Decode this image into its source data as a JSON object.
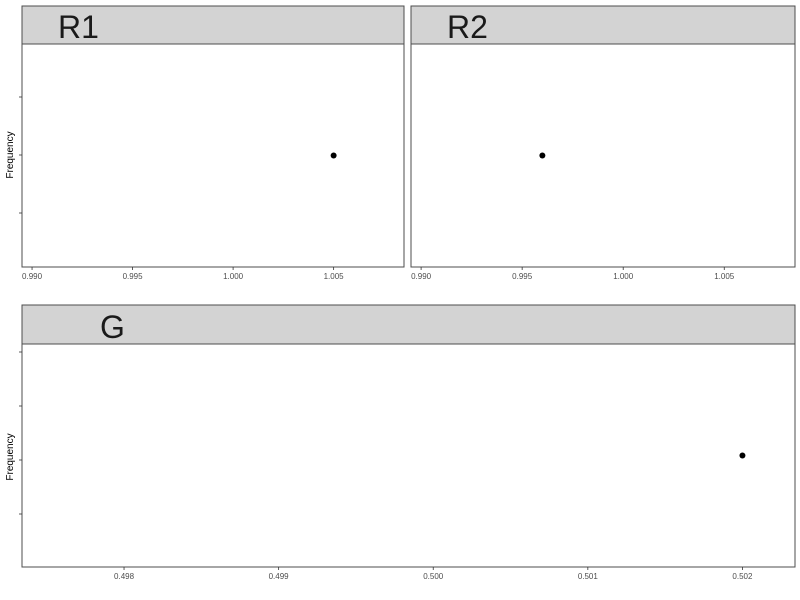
{
  "chart_data": [
    {
      "type": "scatter",
      "facet": "R1",
      "ylabel": "Frequency",
      "xlim": [
        0.9895,
        1.0085
      ],
      "xticks": [
        0.99,
        0.995,
        1.0,
        1.005
      ],
      "xtick_labels": [
        "0.990",
        "0.995",
        "1.000",
        "1.005"
      ],
      "ylim": [
        0.94,
        1.06
      ],
      "points": [
        {
          "x": 1.005,
          "y": 1
        }
      ],
      "grid": false
    },
    {
      "type": "scatter",
      "facet": "R2",
      "ylabel": "",
      "xlim": [
        0.9895,
        1.0085
      ],
      "xticks": [
        0.99,
        0.995,
        1.0,
        1.005
      ],
      "xtick_labels": [
        "0.990",
        "0.995",
        "1.000",
        "1.005"
      ],
      "ylim": [
        0.94,
        1.06
      ],
      "points": [
        {
          "x": 0.996,
          "y": 1
        }
      ],
      "grid": false
    },
    {
      "type": "scatter",
      "facet": "G",
      "ylabel": "Frequency",
      "xlim": [
        0.49734,
        0.50234
      ],
      "xticks": [
        0.498,
        0.499,
        0.5,
        0.501,
        0.502
      ],
      "xtick_labels": [
        "0.498",
        "0.499",
        "0.500",
        "0.501",
        "0.502"
      ],
      "ylim": [
        0.94,
        1.06
      ],
      "points": [
        {
          "x": 0.502,
          "y": 1
        }
      ],
      "grid": false
    }
  ]
}
